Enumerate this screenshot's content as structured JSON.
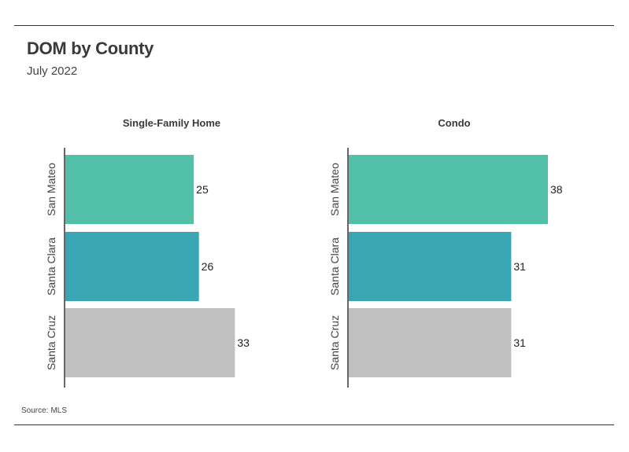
{
  "header": {
    "title": "DOM by County",
    "subtitle": "July 2022"
  },
  "footer": {
    "source_label": "Source:",
    "source_value": "MLS"
  },
  "colors": {
    "San Mateo": "#52bfa9",
    "Santa Clara": "#38a6b3",
    "Santa Cruz": "#c0c0c0",
    "axis": "#333333"
  },
  "chart_data": [
    {
      "type": "bar",
      "orientation": "horizontal",
      "title": "Single-Family Home",
      "categories": [
        "San Mateo",
        "Santa Clara",
        "Santa Cruz"
      ],
      "values": [
        25,
        26,
        33
      ],
      "xlim": [
        0,
        38
      ]
    },
    {
      "type": "bar",
      "orientation": "horizontal",
      "title": "Condo",
      "categories": [
        "San Mateo",
        "Santa Clara",
        "Santa Cruz"
      ],
      "values": [
        38,
        31,
        31
      ],
      "xlim": [
        0,
        38
      ]
    }
  ]
}
